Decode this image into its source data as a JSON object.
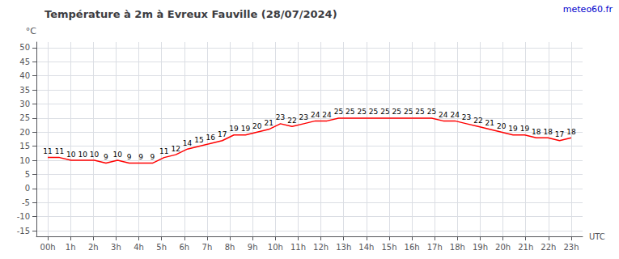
{
  "chart_data": {
    "type": "line",
    "title": "Température à 2m à Evreux Fauville (28/07/2024)",
    "ylabel": "°C",
    "xlabel": "UTC",
    "annotations": [
      {
        "text": "meteo60.fr",
        "color": "#0000cc"
      }
    ],
    "x": [
      0,
      0.511111111111,
      1.022222222222,
      1.533333333333,
      2.044444444444,
      2.555555555556,
      3.066666666667,
      3.577777777778,
      4.088888888889,
      4.6,
      5.111111111111,
      5.622222222222,
      6.133333333333,
      6.644444444444,
      7.155555555556,
      7.666666666667,
      8.177777777778,
      8.688888888889,
      9.2,
      9.711111111111,
      10.222222222222,
      10.733333333333,
      11.244444444444,
      11.755555555556,
      12.266666666667,
      12.777777777778,
      13.288888888889,
      13.8,
      14.311111111111,
      14.822222222222,
      15.333333333333,
      15.844444444444,
      16.355555555556,
      16.866666666667,
      17.377777777778,
      17.888888888889,
      18.4,
      18.911111111111,
      19.422222222222,
      19.933333333333,
      20.444444444444,
      20.955555555556,
      21.466666666667,
      21.977777777778,
      22.488888888889,
      23
    ],
    "values": [
      11,
      11,
      10,
      10,
      10,
      9,
      10,
      9,
      9,
      9,
      11,
      12,
      14,
      15,
      16,
      17,
      19,
      19,
      20,
      21,
      23,
      22,
      23,
      24,
      24,
      25,
      25,
      25,
      25,
      25,
      25,
      25,
      25,
      25,
      24,
      24,
      23,
      22,
      21,
      20,
      19,
      19,
      18,
      18,
      17,
      18
    ],
    "color": "#ff0000",
    "xlim": [
      -0.5,
      23.5
    ],
    "xticks": [
      {
        "value": 0,
        "label": "00h"
      },
      {
        "value": 1,
        "label": "1h"
      },
      {
        "value": 2,
        "label": "2h"
      },
      {
        "value": 3,
        "label": "3h"
      },
      {
        "value": 4,
        "label": "4h"
      },
      {
        "value": 5,
        "label": "5h"
      },
      {
        "value": 6,
        "label": "6h"
      },
      {
        "value": 7,
        "label": "7h"
      },
      {
        "value": 8,
        "label": "8h"
      },
      {
        "value": 9,
        "label": "9h"
      },
      {
        "value": 10,
        "label": "10h"
      },
      {
        "value": 11,
        "label": "11h"
      },
      {
        "value": 12,
        "label": "12h"
      },
      {
        "value": 13,
        "label": "13h"
      },
      {
        "value": 14,
        "label": "14h"
      },
      {
        "value": 15,
        "label": "15h"
      },
      {
        "value": 16,
        "label": "16h"
      },
      {
        "value": 17,
        "label": "17h"
      },
      {
        "value": 18,
        "label": "18h"
      },
      {
        "value": 19,
        "label": "19h"
      },
      {
        "value": 20,
        "label": "20h"
      },
      {
        "value": 21,
        "label": "21h"
      },
      {
        "value": 22,
        "label": "22h"
      },
      {
        "value": 23,
        "label": "23h"
      }
    ],
    "ylim": [
      -17,
      52
    ],
    "yticks": [
      -15,
      -10,
      -5,
      0,
      5,
      10,
      15,
      20,
      25,
      30,
      35,
      40,
      45,
      50
    ],
    "grid": true,
    "data_labels": true
  }
}
